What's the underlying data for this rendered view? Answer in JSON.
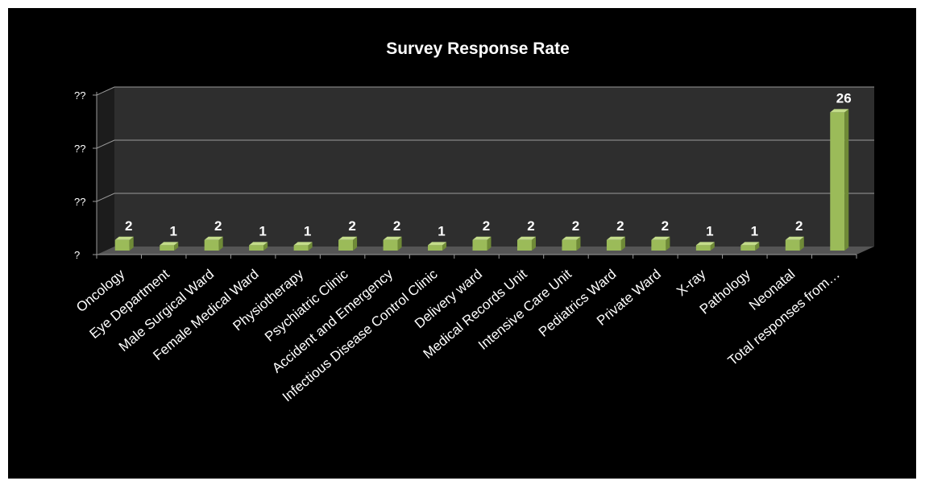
{
  "chart_data": {
    "type": "bar",
    "title": "Survey Response Rate",
    "categories": [
      "Oncology",
      "Eye Department",
      "Male Surgical Ward",
      "Female Medical Ward",
      "Physiotherapy",
      "Psychiatric Clinic",
      "Accident and Emergency",
      "Infectious Disease Control Clinic",
      "Delivery ward",
      "Medical Records Unit",
      "Intensive Care Unit",
      "Pediatrics Ward",
      "Private Ward",
      "X-ray",
      "Pathology",
      "Neonatal",
      "Total responses from…"
    ],
    "values": [
      2,
      1,
      2,
      1,
      1,
      2,
      2,
      1,
      2,
      2,
      2,
      2,
      2,
      1,
      1,
      2,
      26
    ],
    "ylim": [
      0,
      30
    ],
    "y_ticks": [
      0,
      10,
      20,
      30
    ],
    "y_tick_labels": [
      "?",
      "??",
      "??",
      "??"
    ],
    "grid": true,
    "legend": "none",
    "colors": {
      "background": "#000000",
      "plot_wall": "#2e2e2e",
      "floor": "#555555",
      "gridline": "#9a9a9a",
      "bar_front": "#9bbb59",
      "bar_top": "#c3dc8a",
      "bar_side": "#6f8a37",
      "text": "#ffffff"
    }
  }
}
